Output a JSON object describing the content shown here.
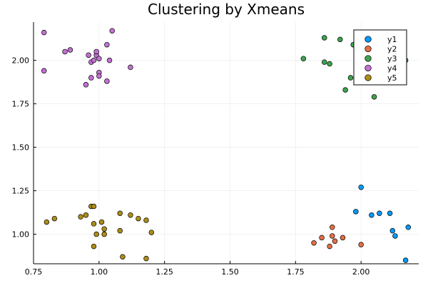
{
  "chart_data": {
    "type": "scatter",
    "title": "Clustering by Xmeans",
    "xlabel": "",
    "ylabel": "",
    "xlim": [
      0.75,
      2.22
    ],
    "ylim": [
      0.83,
      2.22
    ],
    "xticks": [
      0.75,
      1.0,
      1.25,
      1.5,
      1.75,
      2.0
    ],
    "xtick_labels": [
      "0.75",
      "1.00",
      "1.25",
      "1.50",
      "1.75",
      "2.00"
    ],
    "yticks": [
      1.0,
      1.25,
      1.5,
      1.75,
      2.0
    ],
    "ytick_labels": [
      "1.00",
      "1.25",
      "1.50",
      "1.75",
      "2.00"
    ],
    "grid": true,
    "legend_position": "top-right",
    "series": [
      {
        "name": "y1",
        "color": "#009AFA",
        "points": [
          [
            2.0,
            1.27
          ],
          [
            1.98,
            1.13
          ],
          [
            2.04,
            1.11
          ],
          [
            2.07,
            1.12
          ],
          [
            2.11,
            1.12
          ],
          [
            2.12,
            1.02
          ],
          [
            2.13,
            0.99
          ],
          [
            2.18,
            1.04
          ],
          [
            2.17,
            0.85
          ]
        ]
      },
      {
        "name": "y2",
        "color": "#E36F47",
        "points": [
          [
            1.82,
            0.95
          ],
          [
            1.85,
            0.98
          ],
          [
            1.88,
            0.93
          ],
          [
            1.89,
            0.99
          ],
          [
            1.89,
            1.04
          ],
          [
            1.9,
            0.96
          ],
          [
            1.93,
            0.98
          ],
          [
            2.0,
            0.94
          ]
        ]
      },
      {
        "name": "y3",
        "color": "#3EA44E",
        "points": [
          [
            1.78,
            2.01
          ],
          [
            1.86,
            2.13
          ],
          [
            1.86,
            1.99
          ],
          [
            1.88,
            1.98
          ],
          [
            1.92,
            2.12
          ],
          [
            1.94,
            1.83
          ],
          [
            1.96,
            1.9
          ],
          [
            1.97,
            2.09
          ],
          [
            2.05,
            1.79
          ],
          [
            2.17,
            2.0
          ]
        ]
      },
      {
        "name": "y4",
        "color": "#C371D2",
        "points": [
          [
            0.79,
            2.16
          ],
          [
            0.79,
            1.94
          ],
          [
            0.87,
            2.05
          ],
          [
            0.89,
            2.06
          ],
          [
            0.95,
            1.86
          ],
          [
            0.96,
            2.03
          ],
          [
            0.97,
            1.99
          ],
          [
            0.97,
            1.9
          ],
          [
            0.98,
            2.0
          ],
          [
            0.99,
            2.03
          ],
          [
            0.99,
            2.05
          ],
          [
            1.0,
            1.93
          ],
          [
            1.0,
            2.01
          ],
          [
            1.0,
            1.91
          ],
          [
            1.03,
            1.88
          ],
          [
            1.03,
            2.09
          ],
          [
            1.04,
            2.0
          ],
          [
            1.05,
            2.17
          ],
          [
            1.12,
            1.96
          ]
        ]
      },
      {
        "name": "y5",
        "color": "#AC8D18",
        "points": [
          [
            0.8,
            1.07
          ],
          [
            0.83,
            1.09
          ],
          [
            0.93,
            1.1
          ],
          [
            0.95,
            1.11
          ],
          [
            0.97,
            1.16
          ],
          [
            0.98,
            1.16
          ],
          [
            0.98,
            1.06
          ],
          [
            0.98,
            0.93
          ],
          [
            0.99,
            1.0
          ],
          [
            1.01,
            1.07
          ],
          [
            1.02,
            1.03
          ],
          [
            1.02,
            1.0
          ],
          [
            1.08,
            1.12
          ],
          [
            1.08,
            1.02
          ],
          [
            1.09,
            0.87
          ],
          [
            1.12,
            1.11
          ],
          [
            1.15,
            1.09
          ],
          [
            1.18,
            1.08
          ],
          [
            1.18,
            0.86
          ],
          [
            1.2,
            1.01
          ]
        ]
      }
    ]
  }
}
